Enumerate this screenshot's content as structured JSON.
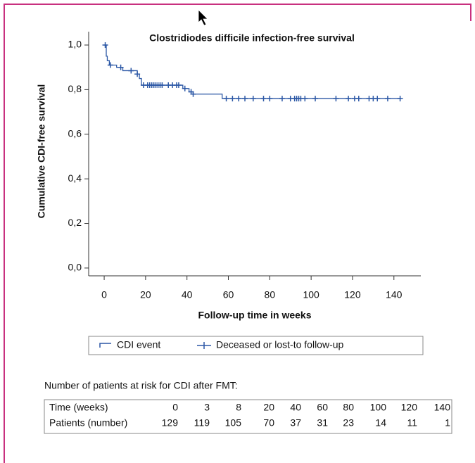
{
  "chart_data": {
    "type": "kaplan-meier",
    "title": "Clostridiodes difficile infection-free survival",
    "x_label": "Follow-up time in weeks",
    "y_label": "Cumulative CDI-free survival",
    "xlim": [
      -7.5,
      153
    ],
    "ylim": [
      -0.035,
      1.06
    ],
    "xticks": [
      0,
      20,
      40,
      60,
      80,
      100,
      120,
      140
    ],
    "yticks": [
      {
        "value": 0,
        "label": "0,0"
      },
      {
        "value": 0.2,
        "label": "0,2"
      },
      {
        "value": 0.4,
        "label": "0,4"
      },
      {
        "value": 0.6,
        "label": "0,6"
      },
      {
        "value": 0.8,
        "label": "0,8"
      },
      {
        "value": 1,
        "label": "1,0"
      }
    ],
    "series": [
      {
        "name": "CDI event",
        "color": "#2b57a5",
        "x": [
          0,
          1,
          1.5,
          2.5,
          6,
          9,
          16,
          17,
          18,
          38,
          41,
          43,
          57,
          143
        ],
        "values": [
          1.0,
          0.95,
          0.93,
          0.91,
          0.9,
          0.885,
          0.87,
          0.85,
          0.82,
          0.805,
          0.79,
          0.78,
          0.76,
          0.76
        ]
      },
      {
        "name": "Deceased or lost-to follow-up",
        "color": "#2b57a5",
        "x": [
          0.5,
          3,
          8,
          13,
          16,
          19,
          21,
          22,
          23,
          24,
          25,
          26,
          27,
          28,
          31,
          33,
          35,
          36,
          39,
          42,
          43,
          59,
          62,
          65,
          68,
          72,
          77,
          80,
          86,
          90,
          92,
          93,
          94,
          95,
          97,
          102,
          112,
          118,
          121,
          123,
          128,
          130,
          132,
          137,
          143
        ],
        "values": [
          1.0,
          0.91,
          0.9,
          0.885,
          0.87,
          0.82,
          0.82,
          0.82,
          0.82,
          0.82,
          0.82,
          0.82,
          0.82,
          0.82,
          0.82,
          0.82,
          0.82,
          0.82,
          0.805,
          0.79,
          0.78,
          0.76,
          0.76,
          0.76,
          0.76,
          0.76,
          0.76,
          0.76,
          0.76,
          0.76,
          0.76,
          0.76,
          0.76,
          0.76,
          0.76,
          0.76,
          0.76,
          0.76,
          0.76,
          0.76,
          0.76,
          0.76,
          0.76,
          0.76,
          0.76
        ]
      }
    ],
    "risk_table": {
      "caption": "Number of patients at risk for CDI after FMT:",
      "rows": [
        {
          "label": "Time (weeks)",
          "values": [
            "0",
            "3",
            "8",
            "20",
            "40",
            "60",
            "80",
            "100",
            "120",
            "140"
          ]
        },
        {
          "label": "Patients (number)",
          "values": [
            "129",
            "119",
            "105",
            "70",
            "37",
            "31",
            "23",
            "14",
            "11",
            "1"
          ]
        }
      ]
    }
  }
}
